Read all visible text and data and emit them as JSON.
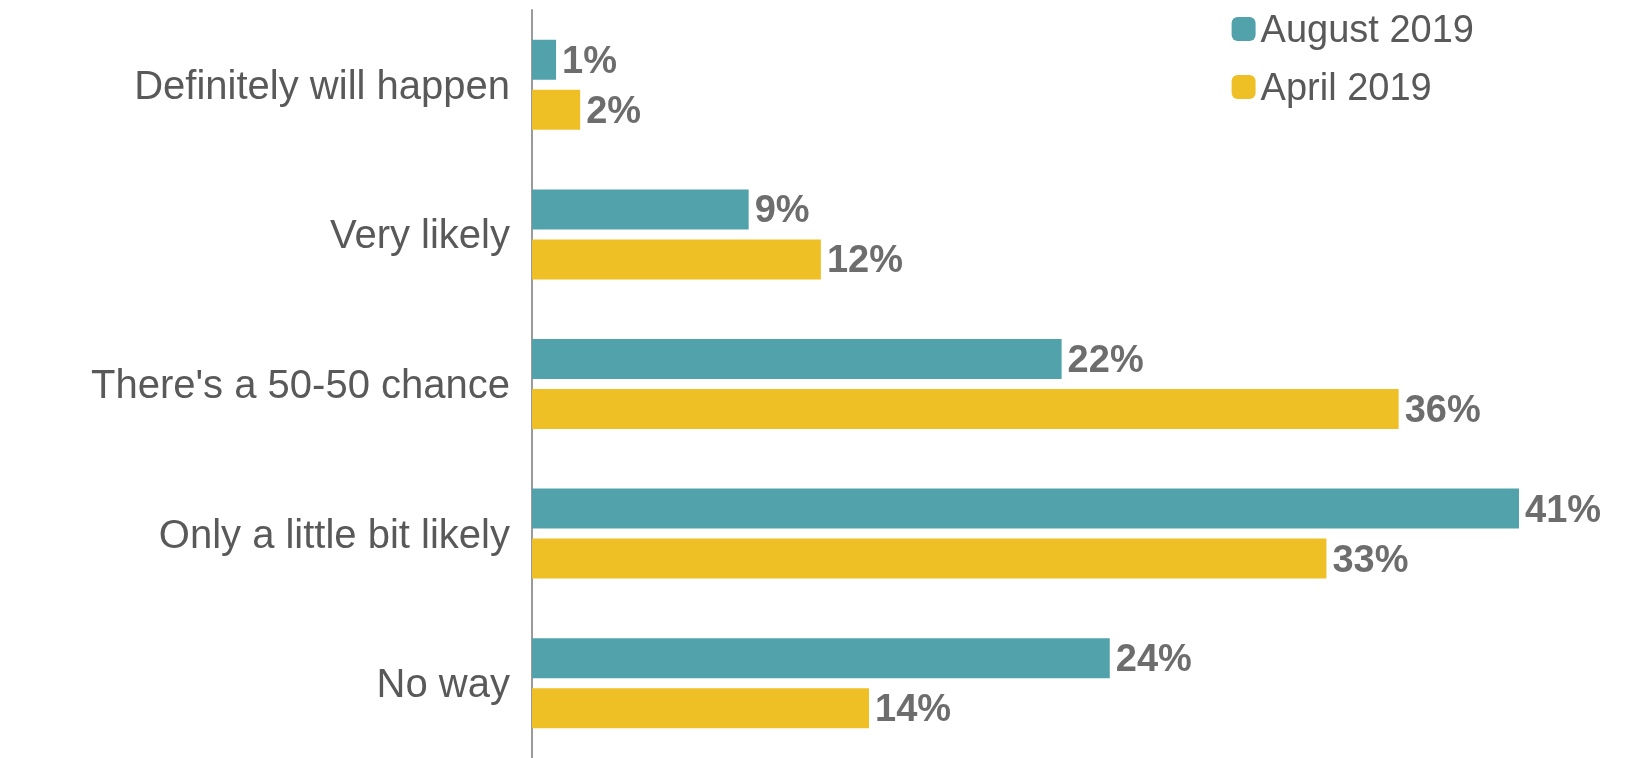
{
  "chart_data": {
    "type": "bar",
    "orientation": "horizontal",
    "categories": [
      "Definitely will happen",
      "Very likely",
      "There's a 50-50 chance",
      "Only a little bit likely",
      "No way"
    ],
    "series": [
      {
        "name": "August 2019",
        "color": "#52a2ab",
        "values": [
          1,
          9,
          22,
          41,
          24
        ],
        "value_labels": [
          "1%",
          "9%",
          "22%",
          "41%",
          "24%"
        ]
      },
      {
        "name": "April 2019",
        "color": "#efc025",
        "values": [
          2,
          12,
          36,
          33,
          14
        ],
        "value_labels": [
          "2%",
          "12%",
          "36%",
          "33%",
          "14%"
        ]
      }
    ],
    "legend": "top right",
    "grid": false
  }
}
